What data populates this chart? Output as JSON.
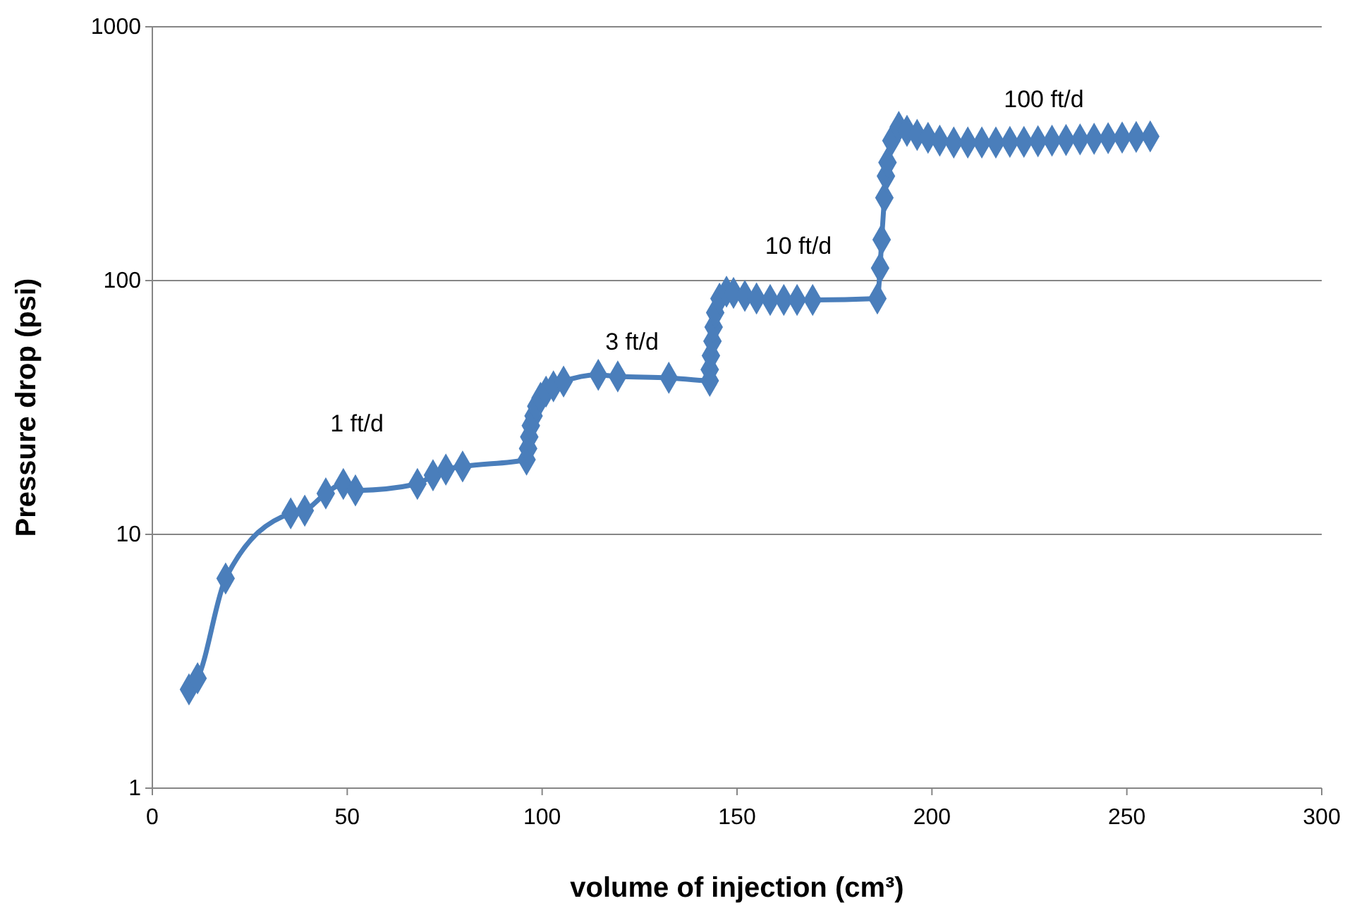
{
  "chart_data": {
    "type": "line",
    "xlabel": "volume of injection (cm³)",
    "ylabel": "Pressure drop (psi)",
    "log": "y",
    "grid": "y",
    "marker": "diamond",
    "line_style": "solid",
    "xlim": [
      0,
      300
    ],
    "xticks": [
      0,
      50,
      100,
      150,
      200,
      250,
      300
    ],
    "ylim": [
      1,
      1000
    ],
    "yticks": [
      1,
      10,
      100,
      1000
    ],
    "series": [
      {
        "color": "#4a7ebb",
        "x": [
          9.4,
          11.6,
          18.8,
          35.5,
          39.1,
          44.5,
          49,
          52.1,
          68,
          72,
          75.3,
          79.6,
          96,
          96.4,
          96.7,
          97.1,
          97.8,
          98.5,
          99.6,
          101,
          102.9,
          105.5,
          114.4,
          119.4,
          132.5,
          143,
          143,
          143.3,
          143.7,
          144,
          144.4,
          145.5,
          147.3,
          149.1,
          152,
          155,
          158.5,
          162,
          165.4,
          169.4,
          186,
          186.7,
          187.1,
          187.8,
          188.2,
          188.6,
          189.6,
          191.5,
          193.6,
          196.2,
          199,
          202,
          205.6,
          209.2,
          212.8,
          216.4,
          220,
          223.6,
          227.2,
          230.8,
          234.4,
          238,
          241.6,
          245.2,
          248.8,
          252.4,
          256
        ],
        "values": [
          2.45,
          2.71,
          6.7,
          12.1,
          12.4,
          14.5,
          15.8,
          14.9,
          15.8,
          17.1,
          18,
          18.5,
          19.7,
          21.8,
          24.2,
          26.8,
          29.3,
          32,
          34.5,
          36.5,
          38.3,
          40,
          42.5,
          41.9,
          41.4,
          40.3,
          44.6,
          50.6,
          57.7,
          65.6,
          74.7,
          84.9,
          90.4,
          89.4,
          87,
          85,
          83.9,
          83.9,
          83.9,
          83.9,
          85,
          112,
          145,
          212,
          258,
          292,
          356,
          403,
          389,
          375,
          365,
          356,
          350,
          350,
          350,
          350,
          352,
          352,
          354,
          356,
          358,
          360,
          362,
          364,
          366,
          368,
          370
        ]
      }
    ],
    "annotations": [
      "1 ft/d",
      "3 ft/d",
      "10 ft/d",
      "100 ft/d"
    ]
  }
}
